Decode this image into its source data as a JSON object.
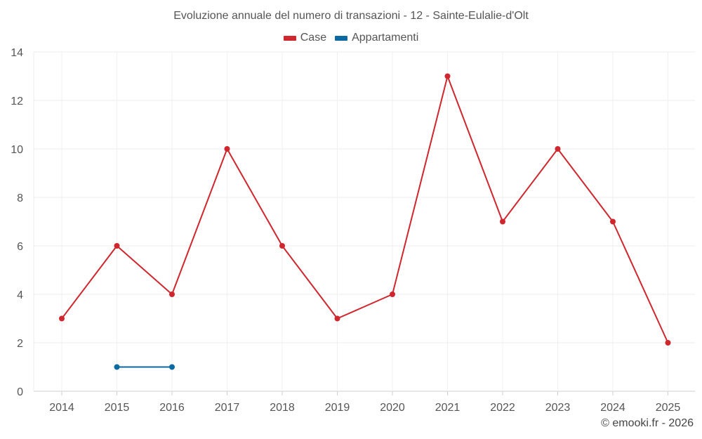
{
  "chart_data": {
    "type": "line",
    "title": "Evoluzione annuale del numero di transazioni - 12 - Sainte-Eulalie-d'Olt",
    "xlabel": "",
    "ylabel": "",
    "categories": [
      "2014",
      "2015",
      "2016",
      "2017",
      "2018",
      "2019",
      "2020",
      "2021",
      "2022",
      "2023",
      "2024",
      "2025"
    ],
    "ylim": [
      0,
      14
    ],
    "yticks": [
      0,
      2,
      4,
      6,
      8,
      10,
      12,
      14
    ],
    "grid": true,
    "legend_position": "top-center",
    "series": [
      {
        "name": "Case",
        "color": "#d0262d",
        "values": [
          3,
          6,
          4,
          10,
          6,
          3,
          4,
          13,
          7,
          10,
          7,
          2
        ]
      },
      {
        "name": "Appartamenti",
        "color": "#0b6aa2",
        "values": [
          null,
          1,
          1,
          null,
          null,
          null,
          null,
          null,
          null,
          null,
          null,
          null
        ]
      }
    ]
  },
  "credit": "© emooki.fr - 2026"
}
